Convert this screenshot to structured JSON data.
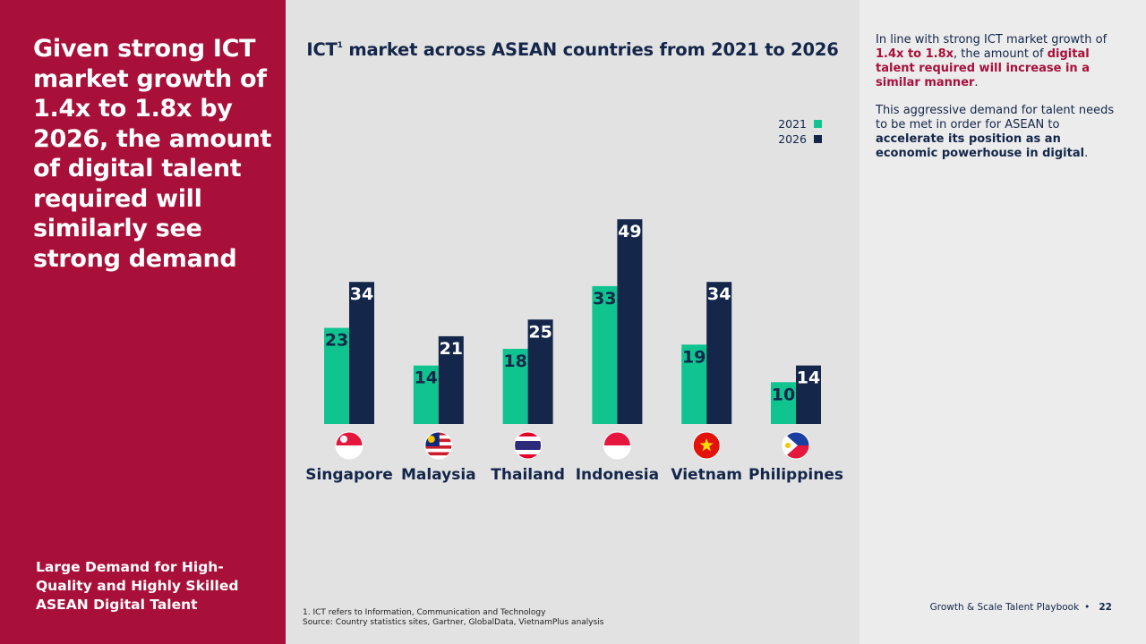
{
  "left": {
    "headline": "Given strong ICT market growth of 1.4x to 1.8x by 2026, the amount of digital talent required will similarly see strong demand",
    "subheading": "Large Demand for High-Quality and Highly Skilled ASEAN Digital Talent"
  },
  "chart_data": {
    "type": "bar",
    "title_main": "ICT",
    "title_sup": "1",
    "title_rest": " market across ASEAN countries from 2021 to 2026",
    "categories": [
      "Singapore",
      "Malaysia",
      "Thailand",
      "Indonesia",
      "Vietnam",
      "Philippines"
    ],
    "series": [
      {
        "name": "2021",
        "color": "#0fc48f",
        "values": [
          23,
          14,
          18,
          33,
          19,
          10
        ]
      },
      {
        "name": "2026",
        "color": "#14264a",
        "values": [
          34,
          21,
          25,
          49,
          34,
          14
        ]
      }
    ],
    "legend_position": "top-right",
    "grid": false,
    "flag_icons": [
      "singapore-flag-icon",
      "malaysia-flag-icon",
      "thailand-flag-icon",
      "indonesia-flag-icon",
      "vietnam-flag-icon",
      "philippines-flag-icon"
    ]
  },
  "footnote": {
    "line1": "1. ICT refers to Information, Communication and Technology",
    "line2": "Source: Country statistics sites, Gartner, GlobalData, VietnamPlus analysis"
  },
  "right": {
    "p1_a": "In line with strong ICT market growth of ",
    "p1_b": "1.4x to 1.8x",
    "p1_c": ", the amount of ",
    "p1_d": "digital talent required will increase in a similar manner",
    "p1_e": ".",
    "p2_a": "This aggressive demand for talent needs to be met in order for ASEAN to ",
    "p2_b": "accelerate its position as an economic powerhouse in digital",
    "p2_c": "."
  },
  "footer": {
    "title": "Growth & Scale Talent Playbook",
    "separator": "•",
    "page": "22"
  },
  "colors": {
    "brand_red": "#a8103a",
    "navy": "#14264a",
    "green": "#0fc48f"
  }
}
